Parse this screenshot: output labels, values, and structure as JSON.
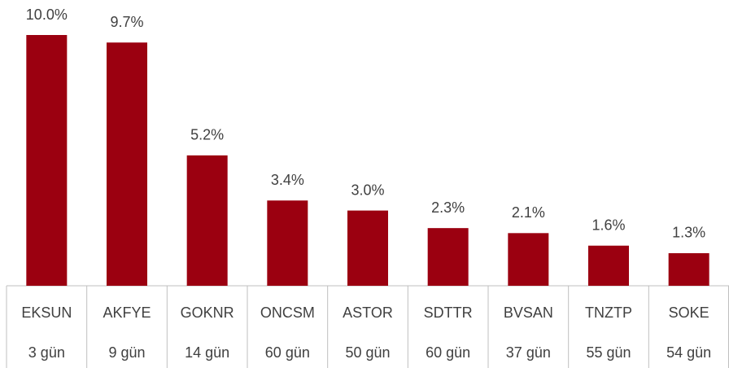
{
  "chart_data": {
    "type": "bar",
    "categories": [
      "EKSUN",
      "AKFYE",
      "GOKNR",
      "ONCSM",
      "ASTOR",
      "SDTTR",
      "BVSAN",
      "TNZTP",
      "SOKE"
    ],
    "category_details": [
      "3 gün",
      "9 gün",
      "14 gün",
      "60 gün",
      "50 gün",
      "60 gün",
      "37 gün",
      "55 gün",
      "54 gün"
    ],
    "values": [
      10.0,
      9.7,
      5.2,
      3.4,
      3.0,
      2.3,
      2.1,
      1.6,
      1.3
    ],
    "value_labels": [
      "10.0%",
      "9.7%",
      "5.2%",
      "3.4%",
      "3.0%",
      "2.3%",
      "2.1%",
      "1.6%",
      "1.3%"
    ],
    "color": "#9b0010"
  }
}
